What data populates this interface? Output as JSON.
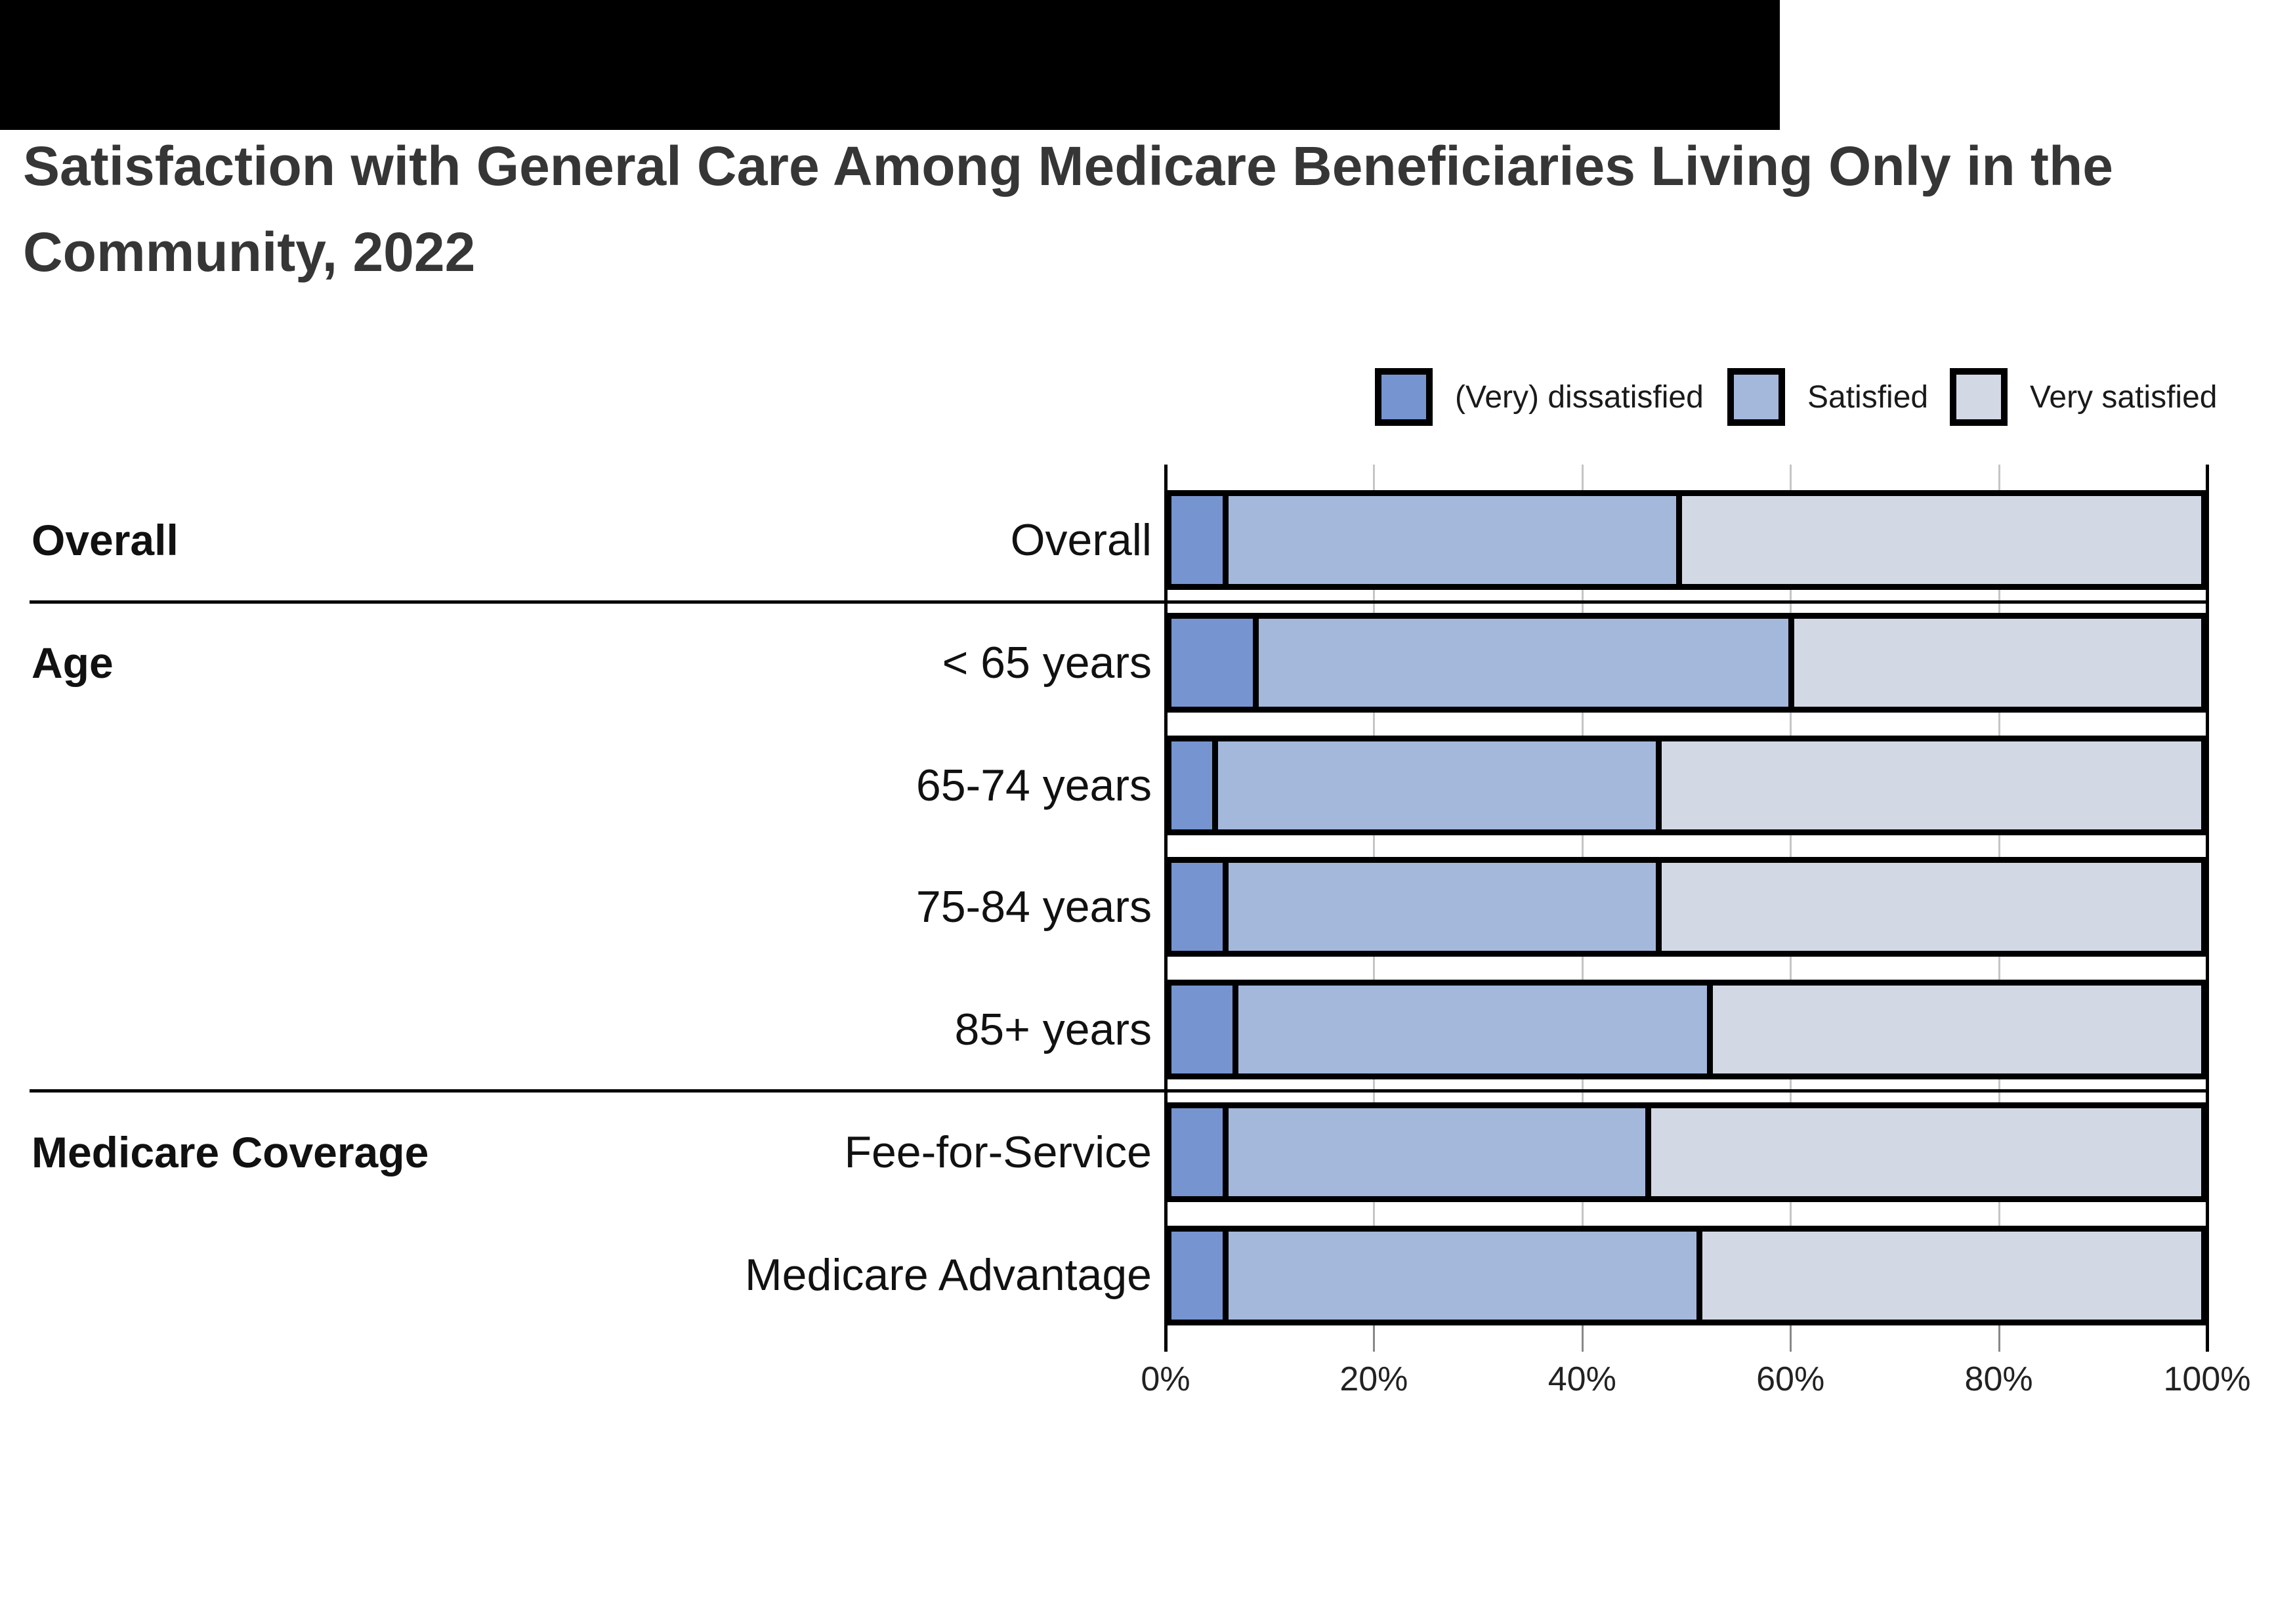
{
  "top_banner": {
    "color": "#000000"
  },
  "title": {
    "lines": [
      "Satisfaction with General Care Among Medicare Beneficiaries Living Only in the",
      "Community, 2022"
    ],
    "color": "#363636"
  },
  "legend": [
    {
      "label": "(Very) dissatisfied",
      "color": "#7694D0"
    },
    {
      "label": "Satisfied",
      "color": "#A4B8DB"
    },
    {
      "label": "Very satisfied",
      "color": "#D3D9E4"
    }
  ],
  "chart_data": {
    "type": "bar",
    "subtype": "horizontal-stacked-100pct",
    "title": "Satisfaction with General Care Among Medicare Beneficiaries Living Only in the Community, 2022",
    "categories": [
      "Overall",
      "< 65 years",
      "65-74 years",
      "75-84 years",
      "85+ years",
      "Fee-for-Service",
      "Medicare Advantage"
    ],
    "row_groups": [
      {
        "label": "Overall",
        "row_indexes": [
          0
        ]
      },
      {
        "label": "Age",
        "row_indexes": [
          1,
          2,
          3,
          4
        ]
      },
      {
        "label": "Medicare Coverage",
        "row_indexes": [
          5,
          6
        ]
      }
    ],
    "series": [
      {
        "name": "(Very) dissatisfied",
        "color": "#7694D0",
        "values": [
          5,
          8,
          4,
          5,
          6,
          5,
          5
        ]
      },
      {
        "name": "Satisfied",
        "color": "#A4B8DB",
        "values": [
          44,
          52,
          43,
          42,
          46,
          41,
          46
        ]
      },
      {
        "name": "Very satisfied",
        "color": "#D3D9E4",
        "values": [
          51,
          40,
          53,
          53,
          48,
          54,
          49
        ]
      }
    ],
    "x_axis": {
      "range": [
        0,
        100
      ],
      "tick_labels": [
        "0%",
        "20%",
        "40%",
        "60%",
        "80%",
        "100%"
      ],
      "gridlines_pct": [
        20,
        40,
        60,
        80
      ],
      "gridline_color": "#c5c5c5",
      "axis_color": "#000000"
    },
    "legend_position": "top-right",
    "bar_border_color": "#000000"
  }
}
